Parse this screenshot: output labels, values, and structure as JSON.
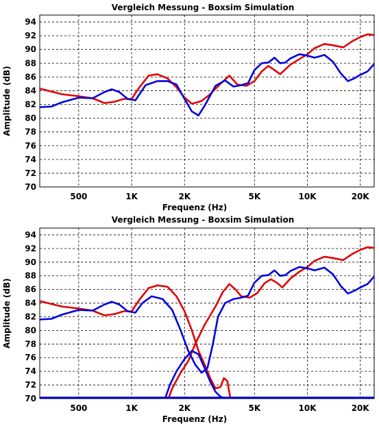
{
  "chart_data": [
    {
      "type": "line",
      "title": "Vergleich Messung - Boxsim Simulation",
      "xlabel": "Frequenz (Hz)",
      "ylabel": "Amplitude (dB)",
      "xscale": "log",
      "xlim": [
        300,
        24000
      ],
      "ylim": [
        70,
        95
      ],
      "grid": true,
      "xticks": [
        {
          "v": 500,
          "label": "500"
        },
        {
          "v": 1000,
          "label": "1K"
        },
        {
          "v": 2000,
          "label": "2K"
        },
        {
          "v": 5000,
          "label": "5K"
        },
        {
          "v": 10000,
          "label": "10K"
        },
        {
          "v": 20000,
          "label": "20K"
        }
      ],
      "yticks": [
        70,
        72,
        74,
        76,
        78,
        80,
        82,
        84,
        86,
        88,
        90,
        92,
        94
      ],
      "series": [
        {
          "color": "#e00000",
          "points": [
            [
              300,
              84.3
            ],
            [
              400,
              83.5
            ],
            [
              500,
              83.2
            ],
            [
              600,
              82.9
            ],
            [
              700,
              82.2
            ],
            [
              800,
              82.4
            ],
            [
              900,
              82.8
            ],
            [
              1000,
              82.8
            ],
            [
              1100,
              84.4
            ],
            [
              1250,
              86.2
            ],
            [
              1400,
              86.4
            ],
            [
              1600,
              85.8
            ],
            [
              1800,
              84.5
            ],
            [
              2000,
              83.0
            ],
            [
              2200,
              82.1
            ],
            [
              2500,
              82.5
            ],
            [
              2800,
              83.5
            ],
            [
              3200,
              85.0
            ],
            [
              3600,
              86.2
            ],
            [
              3800,
              85.5
            ],
            [
              4000,
              84.9
            ],
            [
              4500,
              84.7
            ],
            [
              5000,
              85.4
            ],
            [
              5500,
              86.8
            ],
            [
              6000,
              87.6
            ],
            [
              6500,
              87.0
            ],
            [
              7000,
              86.4
            ],
            [
              8000,
              87.8
            ],
            [
              9000,
              88.6
            ],
            [
              10000,
              89.3
            ],
            [
              11000,
              90.2
            ],
            [
              12500,
              90.8
            ],
            [
              14000,
              90.6
            ],
            [
              16000,
              90.3
            ],
            [
              18000,
              91.2
            ],
            [
              20000,
              91.8
            ],
            [
              22000,
              92.2
            ],
            [
              24000,
              92.1
            ]
          ]
        },
        {
          "color": "#0000e0",
          "points": [
            [
              300,
              81.6
            ],
            [
              350,
              81.7
            ],
            [
              400,
              82.3
            ],
            [
              500,
              83.0
            ],
            [
              600,
              82.9
            ],
            [
              700,
              83.8
            ],
            [
              770,
              84.2
            ],
            [
              850,
              83.8
            ],
            [
              950,
              82.8
            ],
            [
              1050,
              82.6
            ],
            [
              1200,
              84.8
            ],
            [
              1400,
              85.4
            ],
            [
              1600,
              85.4
            ],
            [
              1800,
              84.9
            ],
            [
              2000,
              82.8
            ],
            [
              2200,
              81.0
            ],
            [
              2400,
              80.4
            ],
            [
              2600,
              81.8
            ],
            [
              3000,
              84.7
            ],
            [
              3400,
              85.5
            ],
            [
              3800,
              84.6
            ],
            [
              4200,
              84.8
            ],
            [
              4600,
              85.1
            ],
            [
              5000,
              87.0
            ],
            [
              5500,
              88.0
            ],
            [
              6000,
              88.1
            ],
            [
              6500,
              88.8
            ],
            [
              7000,
              88.0
            ],
            [
              7500,
              88.1
            ],
            [
              8000,
              88.7
            ],
            [
              9000,
              89.3
            ],
            [
              10000,
              89.1
            ],
            [
              11000,
              88.8
            ],
            [
              12500,
              89.2
            ],
            [
              14000,
              88.2
            ],
            [
              15500,
              86.5
            ],
            [
              17000,
              85.4
            ],
            [
              18500,
              85.8
            ],
            [
              20000,
              86.3
            ],
            [
              22000,
              86.8
            ],
            [
              24000,
              87.9
            ]
          ]
        }
      ]
    },
    {
      "type": "line",
      "title": "Vergleich Messung - Boxsim Simulation",
      "xlabel": "Frequenz (Hz)",
      "ylabel": "Amplitude (dB)",
      "xscale": "log",
      "xlim": [
        300,
        24000
      ],
      "ylim": [
        70,
        95
      ],
      "grid": true,
      "xticks": [
        {
          "v": 500,
          "label": "500"
        },
        {
          "v": 1000,
          "label": "1K"
        },
        {
          "v": 2000,
          "label": "2K"
        },
        {
          "v": 5000,
          "label": "5K"
        },
        {
          "v": 10000,
          "label": "10K"
        },
        {
          "v": 20000,
          "label": "20K"
        }
      ],
      "yticks": [
        70,
        72,
        74,
        76,
        78,
        80,
        82,
        84,
        86,
        88,
        90,
        92,
        94
      ],
      "series": [
        {
          "color": "#e00000",
          "points": [
            [
              300,
              84.3
            ],
            [
              400,
              83.5
            ],
            [
              500,
              83.2
            ],
            [
              600,
              82.9
            ],
            [
              700,
              82.2
            ],
            [
              800,
              82.4
            ],
            [
              900,
              82.8
            ],
            [
              1000,
              82.8
            ],
            [
              1100,
              84.4
            ],
            [
              1250,
              86.2
            ],
            [
              1400,
              86.6
            ],
            [
              1600,
              86.4
            ],
            [
              1800,
              85.0
            ],
            [
              2000,
              82.8
            ],
            [
              2200,
              80.0
            ],
            [
              2400,
              77.0
            ],
            [
              2600,
              75.0
            ],
            [
              2800,
              73.0
            ],
            [
              3000,
              71.5
            ],
            [
              3200,
              71.7
            ],
            [
              3350,
              73.0
            ],
            [
              3500,
              72.6
            ],
            [
              3650,
              70.0
            ]
          ]
        },
        {
          "color": "#e00000",
          "points": [
            [
              1620,
              70.0
            ],
            [
              1700,
              71.5
            ],
            [
              1900,
              73.8
            ],
            [
              2100,
              75.5
            ],
            [
              2300,
              78.0
            ],
            [
              2600,
              80.8
            ],
            [
              3000,
              83.5
            ],
            [
              3300,
              85.6
            ],
            [
              3600,
              86.8
            ],
            [
              3900,
              86.0
            ],
            [
              4200,
              85.0
            ],
            [
              4700,
              84.8
            ],
            [
              5200,
              85.5
            ],
            [
              5700,
              86.9
            ],
            [
              6200,
              87.5
            ],
            [
              6700,
              87.0
            ],
            [
              7200,
              86.3
            ],
            [
              8000,
              87.6
            ],
            [
              9000,
              88.6
            ],
            [
              10000,
              89.3
            ],
            [
              11000,
              90.2
            ],
            [
              12500,
              90.8
            ],
            [
              14000,
              90.6
            ],
            [
              16000,
              90.3
            ],
            [
              18000,
              91.2
            ],
            [
              20000,
              91.8
            ],
            [
              22000,
              92.2
            ],
            [
              24000,
              92.1
            ]
          ]
        },
        {
          "color": "#0000e0",
          "points": [
            [
              300,
              81.6
            ],
            [
              350,
              81.7
            ],
            [
              400,
              82.3
            ],
            [
              500,
              83.0
            ],
            [
              600,
              82.9
            ],
            [
              700,
              83.8
            ],
            [
              770,
              84.2
            ],
            [
              850,
              83.8
            ],
            [
              950,
              82.8
            ],
            [
              1050,
              82.6
            ],
            [
              1150,
              84.0
            ],
            [
              1300,
              85.0
            ],
            [
              1500,
              84.6
            ],
            [
              1700,
              83.0
            ],
            [
              1900,
              80.0
            ],
            [
              2100,
              77.0
            ],
            [
              2300,
              75.0
            ],
            [
              2500,
              73.8
            ],
            [
              2700,
              74.5
            ],
            [
              2900,
              78.0
            ],
            [
              3100,
              82.0
            ],
            [
              3400,
              84.0
            ],
            [
              3800,
              84.6
            ],
            [
              4200,
              84.8
            ],
            [
              4600,
              85.1
            ],
            [
              5000,
              87.0
            ],
            [
              5500,
              88.0
            ],
            [
              6000,
              88.1
            ],
            [
              6500,
              88.8
            ],
            [
              7000,
              88.0
            ],
            [
              7500,
              88.1
            ],
            [
              8000,
              88.7
            ],
            [
              9000,
              89.3
            ],
            [
              10000,
              89.1
            ],
            [
              11000,
              88.8
            ],
            [
              12500,
              89.2
            ],
            [
              14000,
              88.2
            ],
            [
              15500,
              86.5
            ],
            [
              17000,
              85.4
            ],
            [
              18500,
              85.8
            ],
            [
              20000,
              86.3
            ],
            [
              22000,
              86.8
            ],
            [
              24000,
              87.9
            ]
          ]
        },
        {
          "color": "#0000e0",
          "points": [
            [
              1550,
              70.0
            ],
            [
              1650,
              72.0
            ],
            [
              1800,
              74.0
            ],
            [
              2000,
              75.8
            ],
            [
              2200,
              77.0
            ],
            [
              2400,
              76.5
            ],
            [
              2600,
              74.5
            ],
            [
              2800,
              72.5
            ],
            [
              3000,
              71.0
            ],
            [
              3200,
              70.3
            ],
            [
              3400,
              70.0
            ]
          ]
        },
        {
          "color": "#0000e0",
          "points": [
            [
              300,
              70.15
            ],
            [
              24000,
              70.15
            ]
          ]
        }
      ]
    }
  ]
}
